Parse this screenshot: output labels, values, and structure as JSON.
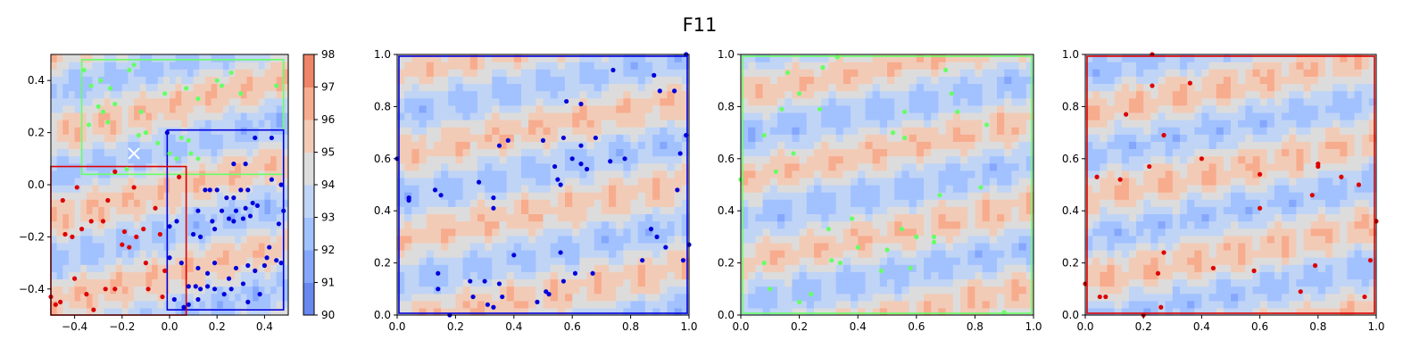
{
  "figure": {
    "title": "F11"
  },
  "colors": {
    "levels": [
      "#6788ee",
      "#84a7fc",
      "#a2c1ff",
      "#c0d4f5",
      "#dddcdc",
      "#f2cbb7",
      "#f7ac8e",
      "#ee8468"
    ],
    "blue_group": "#0000dd",
    "green_group": "#66ff66",
    "red_group": "#dd0000",
    "marker": "#ffffff"
  },
  "chart_data": [
    {
      "type": "contour",
      "panel": "overview",
      "xlim": [
        -0.5,
        0.5
      ],
      "ylim": [
        -0.5,
        0.5
      ],
      "x_ticks": [
        -0.4,
        -0.2,
        0.0,
        0.2,
        0.4
      ],
      "y_ticks": [
        -0.4,
        -0.2,
        0.0,
        0.2,
        0.4
      ],
      "x_tick_labels": [
        "−0.4",
        "−0.2",
        "0.0",
        "0.2",
        "0.4"
      ],
      "y_tick_labels": [
        "−0.4",
        "−0.2",
        "0.0",
        "0.2",
        "0.4"
      ],
      "colorbar": {
        "levels": [
          90,
          91,
          92,
          93,
          94,
          95,
          96,
          97,
          98
        ],
        "tick_labels": [
          "90",
          "91",
          "92",
          "93",
          "94",
          "95",
          "96",
          "97",
          "98"
        ]
      },
      "marker_x": {
        "x": -0.15,
        "y": 0.12
      },
      "regions": [
        {
          "color": "green",
          "x0": -0.37,
          "x1": 0.48,
          "y0": 0.04,
          "y1": 0.48
        },
        {
          "color": "blue",
          "x0": -0.01,
          "x1": 0.48,
          "y0": -0.48,
          "y1": 0.21
        },
        {
          "color": "red",
          "x0": -0.5,
          "x1": 0.07,
          "y0": -0.5,
          "y1": 0.07
        }
      ],
      "points": {
        "green": [
          [
            -0.15,
            0.46
          ],
          [
            -0.17,
            0.44
          ],
          [
            -0.36,
            0.44
          ],
          [
            -0.29,
            0.4
          ],
          [
            -0.33,
            0.38
          ],
          [
            -0.25,
            0.37
          ],
          [
            0.07,
            0.37
          ],
          [
            -0.02,
            0.35
          ],
          [
            -0.3,
            0.3
          ],
          [
            0.12,
            0.33
          ],
          [
            -0.28,
            0.28
          ],
          [
            -0.23,
            0.31
          ],
          [
            -0.12,
            0.28
          ],
          [
            0.3,
            0.35
          ],
          [
            -0.34,
            0.23
          ],
          [
            -0.26,
            0.24
          ],
          [
            0.22,
            0.38
          ],
          [
            0.05,
            0.18
          ],
          [
            0.08,
            0.17
          ],
          [
            -0.05,
            0.16
          ],
          [
            0.09,
            0.12
          ],
          [
            0.03,
            0.1
          ],
          [
            0.12,
            0.1
          ],
          [
            -0.13,
            0.19
          ],
          [
            -0.1,
            0.2
          ],
          [
            0.0,
            0.12
          ],
          [
            -0.18,
            0.06
          ],
          [
            0.2,
            0.4
          ],
          [
            0.45,
            0.38
          ],
          [
            0.26,
            0.43
          ]
        ],
        "blue": [
          [
            0.15,
            -0.02
          ],
          [
            0.17,
            -0.02
          ],
          [
            0.2,
            -0.02
          ],
          [
            0.24,
            -0.05
          ],
          [
            0.27,
            -0.05
          ],
          [
            0.3,
            -0.02
          ],
          [
            0.33,
            -0.02
          ],
          [
            0.35,
            -0.07
          ],
          [
            0.22,
            -0.1
          ],
          [
            0.28,
            -0.1
          ],
          [
            0.32,
            -0.09
          ],
          [
            0.34,
            -0.12
          ],
          [
            0.37,
            -0.08
          ],
          [
            0.46,
            -0.15
          ],
          [
            0.12,
            -0.1
          ],
          [
            0.18,
            -0.14
          ],
          [
            0.25,
            -0.13
          ],
          [
            0.27,
            -0.14
          ],
          [
            0.31,
            -0.13
          ],
          [
            0.1,
            -0.19
          ],
          [
            0.13,
            -0.2
          ],
          [
            0.19,
            -0.17
          ],
          [
            0.03,
            -0.14
          ],
          [
            0.0,
            -0.16
          ],
          [
            0.0,
            -0.28
          ],
          [
            0.05,
            -0.3
          ],
          [
            0.12,
            -0.32
          ],
          [
            0.16,
            -0.34
          ],
          [
            0.19,
            -0.3
          ],
          [
            0.25,
            -0.36
          ],
          [
            0.28,
            -0.32
          ],
          [
            0.33,
            -0.31
          ],
          [
            0.36,
            -0.33
          ],
          [
            0.4,
            -0.31
          ],
          [
            0.42,
            -0.24
          ],
          [
            0.41,
            -0.28
          ],
          [
            0.45,
            -0.29
          ],
          [
            0.47,
            -0.3
          ],
          [
            0.08,
            -0.39
          ],
          [
            0.11,
            -0.39
          ],
          [
            0.13,
            -0.4
          ],
          [
            0.16,
            -0.39
          ],
          [
            0.19,
            -0.4
          ],
          [
            0.23,
            -0.42
          ],
          [
            0.26,
            -0.4
          ],
          [
            0.31,
            -0.38
          ],
          [
            0.33,
            -0.45
          ],
          [
            0.12,
            -0.44
          ],
          [
            0.08,
            -0.46
          ],
          [
            0.38,
            -0.42
          ],
          [
            0.27,
            0.08
          ],
          [
            0.32,
            0.08
          ],
          [
            0.36,
            0.18
          ],
          [
            0.43,
            0.18
          ],
          [
            0.47,
            0.0
          ],
          [
            0.48,
            -0.1
          ],
          [
            -0.01,
            0.2
          ],
          [
            0.06,
            -0.47
          ],
          [
            0.43,
            0.02
          ],
          [
            0.02,
            -0.44
          ]
        ],
        "red": [
          [
            -0.48,
            -0.46
          ],
          [
            -0.46,
            -0.45
          ],
          [
            -0.44,
            -0.19
          ],
          [
            -0.41,
            -0.2
          ],
          [
            -0.37,
            -0.17
          ],
          [
            -0.33,
            -0.14
          ],
          [
            -0.28,
            -0.14
          ],
          [
            -0.35,
            -0.42
          ],
          [
            -0.32,
            -0.48
          ],
          [
            -0.27,
            -0.4
          ],
          [
            -0.23,
            -0.4
          ],
          [
            -0.2,
            -0.23
          ],
          [
            -0.19,
            -0.18
          ],
          [
            -0.14,
            -0.2
          ],
          [
            -0.11,
            -0.17
          ],
          [
            -0.04,
            -0.19
          ],
          [
            -0.02,
            -0.33
          ],
          [
            -0.09,
            -0.4
          ],
          [
            -0.03,
            -0.43
          ],
          [
            -0.45,
            -0.06
          ],
          [
            -0.39,
            -0.01
          ],
          [
            -0.26,
            -0.06
          ],
          [
            -0.15,
            -0.01
          ],
          [
            -0.23,
            0.05
          ],
          [
            -0.06,
            -0.09
          ],
          [
            0.04,
            0.03
          ],
          [
            -0.4,
            -0.36
          ],
          [
            -0.17,
            -0.24
          ],
          [
            -0.1,
            -0.3
          ],
          [
            -0.5,
            -0.43
          ]
        ]
      }
    },
    {
      "type": "contour",
      "panel": "blue-region",
      "xlim": [
        0,
        1
      ],
      "ylim": [
        0,
        1
      ],
      "x_ticks": [
        0,
        0.2,
        0.4,
        0.6,
        0.8,
        1.0
      ],
      "y_ticks": [
        0,
        0.2,
        0.4,
        0.6,
        0.8,
        1.0
      ],
      "x_tick_labels": [
        "0.0",
        "0.2",
        "0.4",
        "0.6",
        "0.8",
        "1.0"
      ],
      "y_tick_labels": [
        "0.0",
        "0.2",
        "0.4",
        "0.6",
        "0.8",
        "1.0"
      ],
      "frame_color": "blue",
      "points": [
        [
          0.0,
          0.6
        ],
        [
          0.04,
          0.45
        ],
        [
          0.04,
          0.44
        ],
        [
          0.13,
          0.48
        ],
        [
          0.15,
          0.46
        ],
        [
          0.14,
          0.16
        ],
        [
          0.14,
          0.1
        ],
        [
          0.18,
          0.0
        ],
        [
          0.25,
          0.13
        ],
        [
          0.26,
          0.07
        ],
        [
          0.28,
          0.51
        ],
        [
          0.3,
          0.13
        ],
        [
          0.31,
          0.04
        ],
        [
          0.33,
          0.45
        ],
        [
          0.33,
          0.41
        ],
        [
          0.33,
          0.03
        ],
        [
          0.35,
          0.65
        ],
        [
          0.35,
          0.12
        ],
        [
          0.36,
          0.07
        ],
        [
          0.38,
          0.67
        ],
        [
          0.4,
          0.23
        ],
        [
          0.48,
          0.05
        ],
        [
          0.5,
          0.67
        ],
        [
          0.51,
          0.09
        ],
        [
          0.52,
          0.08
        ],
        [
          0.54,
          0.57
        ],
        [
          0.55,
          0.52
        ],
        [
          0.56,
          0.5
        ],
        [
          0.56,
          0.24
        ],
        [
          0.57,
          0.68
        ],
        [
          0.57,
          0.13
        ],
        [
          0.58,
          0.82
        ],
        [
          0.6,
          0.6
        ],
        [
          0.61,
          0.16
        ],
        [
          0.63,
          0.81
        ],
        [
          0.63,
          0.65
        ],
        [
          0.63,
          0.58
        ],
        [
          0.65,
          0.56
        ],
        [
          0.67,
          0.16
        ],
        [
          0.68,
          0.68
        ],
        [
          0.73,
          0.59
        ],
        [
          0.74,
          0.94
        ],
        [
          0.78,
          0.6
        ],
        [
          0.84,
          0.21
        ],
        [
          0.87,
          0.33
        ],
        [
          0.88,
          0.92
        ],
        [
          0.89,
          0.3
        ],
        [
          0.9,
          0.86
        ],
        [
          0.92,
          0.26
        ],
        [
          0.95,
          0.86
        ],
        [
          0.96,
          0.48
        ],
        [
          0.97,
          0.62
        ],
        [
          0.98,
          0.21
        ],
        [
          0.99,
          1.0
        ],
        [
          0.99,
          0.69
        ],
        [
          1.0,
          0.27
        ]
      ]
    },
    {
      "type": "contour",
      "panel": "green-region",
      "xlim": [
        0,
        1
      ],
      "ylim": [
        0,
        1
      ],
      "x_ticks": [
        0,
        0.2,
        0.4,
        0.6,
        0.8,
        1.0
      ],
      "y_ticks": [
        0,
        0.2,
        0.4,
        0.6,
        0.8,
        1.0
      ],
      "x_tick_labels": [
        "0.0",
        "0.2",
        "0.4",
        "0.6",
        "0.8",
        "1.0"
      ],
      "y_tick_labels": [
        "0.0",
        "0.2",
        "0.4",
        "0.6",
        "0.8",
        "1.0"
      ],
      "frame_color": "green",
      "points": [
        [
          0.0,
          0.52
        ],
        [
          0.08,
          0.69
        ],
        [
          0.08,
          0.2
        ],
        [
          0.1,
          0.1
        ],
        [
          0.12,
          0.55
        ],
        [
          0.14,
          0.79
        ],
        [
          0.16,
          0.93
        ],
        [
          0.18,
          0.62
        ],
        [
          0.2,
          0.05
        ],
        [
          0.2,
          0.85
        ],
        [
          0.24,
          0.08
        ],
        [
          0.27,
          0.79
        ],
        [
          0.28,
          0.95
        ],
        [
          0.3,
          0.33
        ],
        [
          0.31,
          0.21
        ],
        [
          0.33,
          0.99
        ],
        [
          0.34,
          0.2
        ],
        [
          0.38,
          0.37
        ],
        [
          0.4,
          0.26
        ],
        [
          0.48,
          0.17
        ],
        [
          0.5,
          0.25
        ],
        [
          0.52,
          0.7
        ],
        [
          0.55,
          0.33
        ],
        [
          0.56,
          0.78
        ],
        [
          0.56,
          0.68
        ],
        [
          0.58,
          0.18
        ],
        [
          0.6,
          0.3
        ],
        [
          0.66,
          0.28
        ],
        [
          0.66,
          0.3
        ],
        [
          0.68,
          0.46
        ],
        [
          0.7,
          0.94
        ],
        [
          0.72,
          0.85
        ],
        [
          0.74,
          0.78
        ],
        [
          0.82,
          0.49
        ],
        [
          0.84,
          0.73
        ],
        [
          0.9,
          0.01
        ]
      ]
    },
    {
      "type": "contour",
      "panel": "red-region",
      "xlim": [
        0,
        1
      ],
      "ylim": [
        0,
        1
      ],
      "x_ticks": [
        0,
        0.2,
        0.4,
        0.6,
        0.8,
        1.0
      ],
      "y_ticks": [
        0,
        0.2,
        0.4,
        0.6,
        0.8,
        1.0
      ],
      "x_tick_labels": [
        "0.0",
        "0.2",
        "0.4",
        "0.6",
        "0.8",
        "1.0"
      ],
      "y_tick_labels": [
        "0.0",
        "0.2",
        "0.4",
        "0.6",
        "0.8",
        "1.0"
      ],
      "frame_color": "red",
      "points": [
        [
          0.0,
          0.12
        ],
        [
          0.04,
          0.53
        ],
        [
          0.05,
          0.07
        ],
        [
          0.07,
          0.07
        ],
        [
          0.12,
          0.52
        ],
        [
          0.14,
          0.77
        ],
        [
          0.2,
          0.0
        ],
        [
          0.22,
          0.57
        ],
        [
          0.23,
          0.88
        ],
        [
          0.23,
          1.0
        ],
        [
          0.25,
          0.16
        ],
        [
          0.26,
          0.03
        ],
        [
          0.27,
          0.69
        ],
        [
          0.27,
          0.24
        ],
        [
          0.36,
          0.89
        ],
        [
          0.4,
          0.6
        ],
        [
          0.44,
          0.18
        ],
        [
          0.58,
          0.17
        ],
        [
          0.6,
          0.54
        ],
        [
          0.6,
          0.41
        ],
        [
          0.74,
          0.09
        ],
        [
          0.78,
          0.46
        ],
        [
          0.79,
          0.19
        ],
        [
          0.8,
          0.58
        ],
        [
          0.8,
          0.57
        ],
        [
          0.88,
          0.53
        ],
        [
          0.94,
          0.5
        ],
        [
          0.96,
          0.07
        ],
        [
          0.98,
          0.21
        ],
        [
          1.0,
          0.36
        ]
      ]
    }
  ]
}
